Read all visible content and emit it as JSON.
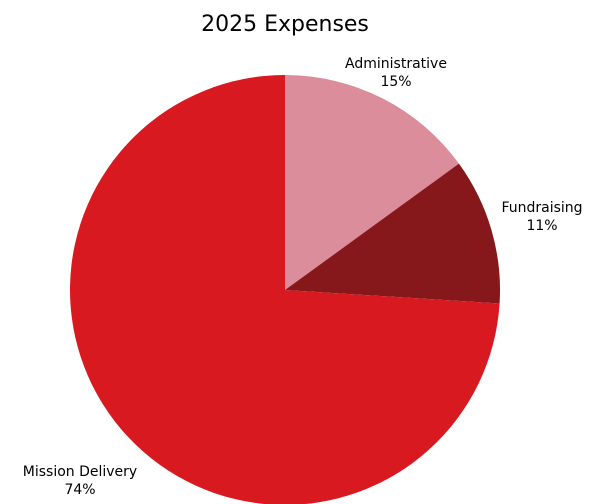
{
  "chart_data": {
    "type": "pie",
    "title": "2025 Expenses",
    "start_angle_deg": 0,
    "direction": "clockwise",
    "slices": [
      {
        "label": "Administrative",
        "value": 15,
        "value_label": "15%",
        "color": "#dc8d9b"
      },
      {
        "label": "Fundraising",
        "value": 11,
        "value_label": "11%",
        "color": "#86181c"
      },
      {
        "label": "Mission Delivery",
        "value": 74,
        "value_label": "74%",
        "color": "#d81a20"
      }
    ]
  }
}
